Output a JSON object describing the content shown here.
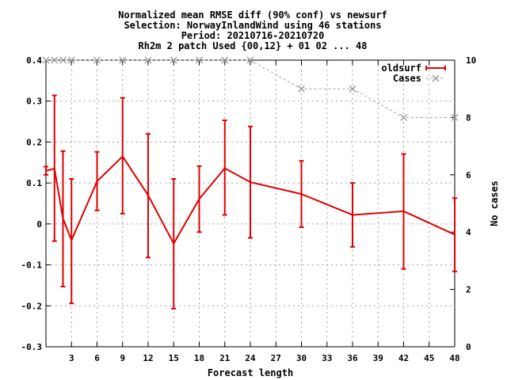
{
  "chart_data": {
    "type": "line",
    "title_lines": [
      "Normalized mean RMSE diff (90% conf) vs newsurf",
      "Selection: NorwayInlandWind using    46 stations",
      "Period: 20210716-20210720",
      "Rh2m 2 patch   Used {00,12} + 01 02 ... 48"
    ],
    "xlabel": "Forecast length",
    "ylabel": "",
    "y2label": "No cases",
    "xlim": [
      0,
      48
    ],
    "ylim": [
      -0.3,
      0.4
    ],
    "y2lim": [
      0,
      10
    ],
    "x_ticks": [
      3,
      6,
      9,
      12,
      15,
      18,
      21,
      24,
      27,
      30,
      33,
      36,
      39,
      42,
      45,
      48
    ],
    "y_ticks": [
      -0.3,
      -0.2,
      -0.1,
      0,
      0.1,
      0.2,
      0.3,
      0.4
    ],
    "y_tick_labels": [
      "-0.3",
      "-0.2",
      "-0.1",
      "0",
      "0.1",
      "0.2",
      "0.3",
      "0.4"
    ],
    "y2_ticks": [
      0,
      2,
      4,
      6,
      8,
      10
    ],
    "y2_tick_labels": [
      "0",
      "2",
      "4",
      "6",
      "8",
      "10"
    ],
    "grid": true,
    "legend_position": "top-right",
    "series": [
      {
        "name": "oldsurf",
        "axis": "y1",
        "color": "#e00000",
        "style": "errorbars-lines",
        "x": [
          0,
          1,
          2,
          3,
          6,
          9,
          12,
          15,
          18,
          21,
          24,
          30,
          36,
          42,
          48
        ],
        "y": [
          0.13,
          0.135,
          0.013,
          -0.04,
          0.104,
          0.165,
          0.07,
          -0.048,
          0.061,
          0.136,
          0.102,
          0.073,
          0.022,
          0.031,
          -0.026
        ],
        "ylow": [
          0.12,
          -0.042,
          -0.153,
          -0.194,
          0.033,
          0.025,
          -0.082,
          -0.207,
          -0.02,
          0.022,
          -0.034,
          -0.008,
          -0.056,
          -0.11,
          -0.116
        ],
        "yhigh": [
          0.14,
          0.314,
          0.178,
          0.11,
          0.176,
          0.308,
          0.22,
          0.11,
          0.141,
          0.253,
          0.238,
          0.154,
          0.1,
          0.171,
          0.063
        ]
      },
      {
        "name": "Cases",
        "axis": "y2",
        "color": "#a0a0a0",
        "style": "dashed-crosses",
        "x": [
          0,
          1,
          2,
          3,
          6,
          9,
          12,
          15,
          18,
          21,
          24,
          30,
          36,
          42,
          48
        ],
        "y": [
          10,
          10,
          10,
          10,
          10,
          10,
          10,
          10,
          10,
          10,
          10,
          9,
          9,
          8,
          8
        ]
      }
    ]
  }
}
